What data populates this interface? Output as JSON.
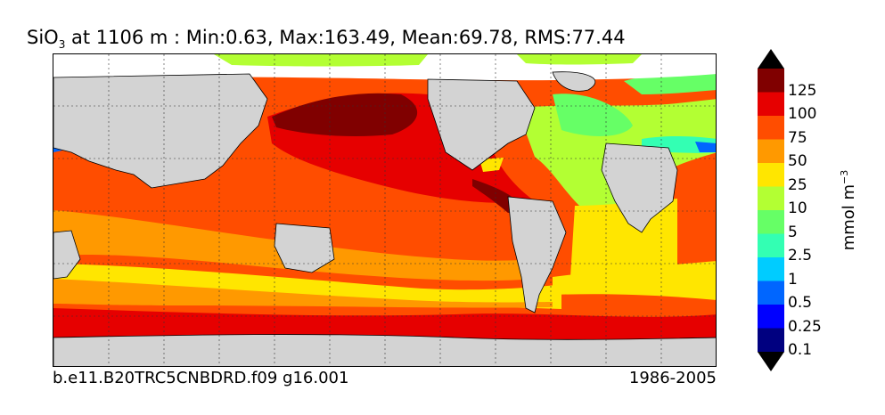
{
  "title": {
    "species": "SiO",
    "subscript": "3",
    "rest": " at 1106 m : Min:0.63, Max:163.49, Mean:69.78, RMS:77.44"
  },
  "footer": {
    "case": "b.e11.B20TRC5CNBDRD.f09 g16.001",
    "period": "1986-2005"
  },
  "colorbar": {
    "unit_base": "mmol m",
    "unit_exp": "−3",
    "levels": [
      "125",
      "100",
      "75",
      "50",
      "25",
      "10",
      "5",
      "2.5",
      "1",
      "0.5",
      "0.25",
      "0.1"
    ],
    "colors": [
      "#000080",
      "#0000ff",
      "#0066ff",
      "#00ccff",
      "#33ffb3",
      "#66ff66",
      "#b3ff33",
      "#ffe600",
      "#ff9900",
      "#ff4d00",
      "#e60000",
      "#800000"
    ],
    "extend_colors": {
      "below": "#000000",
      "above": "#000000"
    }
  },
  "map_colors": {
    "land": "#d3d3d3",
    "no_data": "#ffffff",
    "grid": "#333333"
  }
}
